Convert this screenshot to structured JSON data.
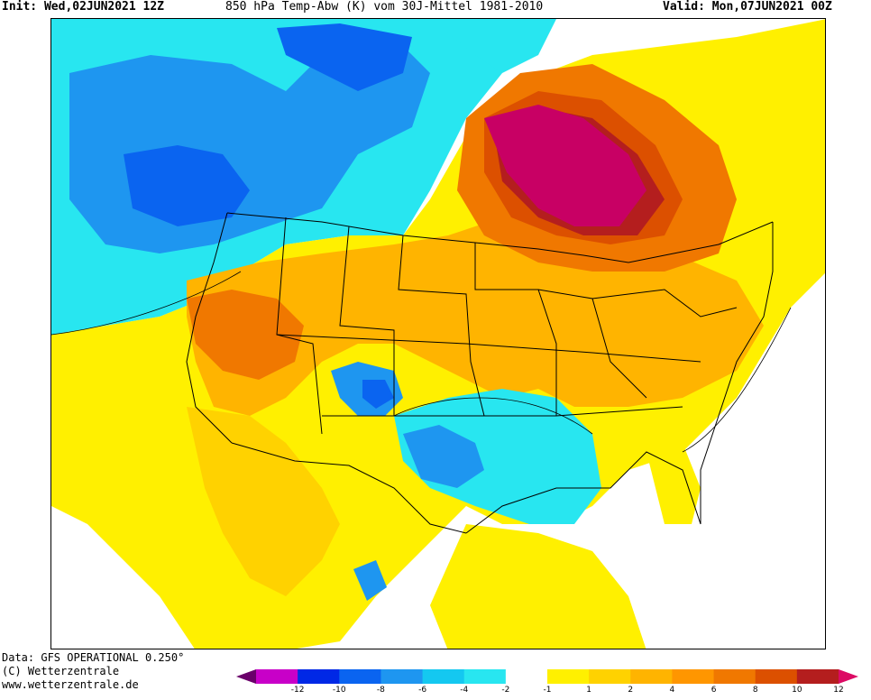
{
  "header": {
    "init": "Init: Wed,02JUN2021 12Z",
    "title": "850 hPa Temp-Abw (K) vom 30J-Mittel 1981-2010",
    "valid": "Valid: Mon,07JUN2021 00Z"
  },
  "footer": {
    "data_source": "Data: GFS OPERATIONAL 0.250°",
    "copyright": "(C) Wetterzentrale",
    "website": "www.wetterzentrale.de"
  },
  "colorbar": {
    "colors": [
      "#6a006a",
      "#c800c8",
      "#0028e6",
      "#0a64f0",
      "#1e96f0",
      "#14c8f0",
      "#28e6f0",
      "#ffffff",
      "#fff000",
      "#ffd200",
      "#ffb400",
      "#ff9600",
      "#f07800",
      "#dc5000",
      "#b41e1e",
      "#dc0a64"
    ],
    "labels": [
      "-12",
      "-10",
      "-8",
      "-6",
      "-4",
      "-2",
      "-1",
      "1",
      "2",
      "4",
      "6",
      "8",
      "10",
      "12"
    ]
  },
  "map": {
    "field": "850 hPa temperature anomaly",
    "units": "K",
    "region": "North America",
    "colors": {
      "strong_cold": "#0a64f0",
      "cold": "#1e96f0",
      "cool": "#28e6f0",
      "neutral": "#ffffff",
      "warm": "#fff000",
      "warmer": "#ffd200",
      "hot": "#ffb400",
      "hotter": "#f07800",
      "very_hot": "#dc5000",
      "extreme": "#b41e1e",
      "max": "#c80064"
    }
  }
}
